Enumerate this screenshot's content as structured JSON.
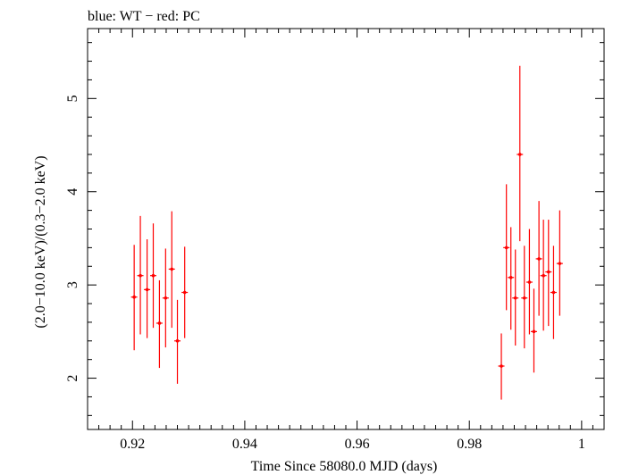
{
  "chart_data": {
    "type": "scatter",
    "title": "blue: WT − red: PC",
    "xlabel": "Time Since 58080.0 MJD (days)",
    "ylabel": "(2.0−10.0 keV)/(0.3−2.0 keV)",
    "xlim": [
      0.912,
      1.004
    ],
    "ylim": [
      1.45,
      5.75
    ],
    "x_ticks": [
      0.92,
      0.94,
      0.96,
      0.98,
      1.0
    ],
    "x_tick_labels": [
      "0.92",
      "0.94",
      "0.96",
      "0.98",
      "1"
    ],
    "y_ticks": [
      2,
      3,
      4,
      5
    ],
    "y_tick_labels": [
      "2",
      "3",
      "4",
      "5"
    ],
    "series": [
      {
        "name": "PC",
        "color": "#ff0000",
        "points": [
          {
            "x": 0.9203,
            "y": 2.87,
            "ylo": 2.3,
            "yhi": 3.43
          },
          {
            "x": 0.9214,
            "y": 3.1,
            "ylo": 2.47,
            "yhi": 3.74
          },
          {
            "x": 0.9226,
            "y": 2.95,
            "ylo": 2.43,
            "yhi": 3.49
          },
          {
            "x": 0.9237,
            "y": 3.1,
            "ylo": 2.54,
            "yhi": 3.66
          },
          {
            "x": 0.9248,
            "y": 2.59,
            "ylo": 2.11,
            "yhi": 3.05
          },
          {
            "x": 0.9259,
            "y": 2.86,
            "ylo": 2.33,
            "yhi": 3.39
          },
          {
            "x": 0.927,
            "y": 3.17,
            "ylo": 2.54,
            "yhi": 3.79
          },
          {
            "x": 0.928,
            "y": 2.4,
            "ylo": 1.94,
            "yhi": 2.84
          },
          {
            "x": 0.9293,
            "y": 2.92,
            "ylo": 2.43,
            "yhi": 3.41
          },
          {
            "x": 0.9857,
            "y": 2.13,
            "ylo": 1.77,
            "yhi": 2.48
          },
          {
            "x": 0.9866,
            "y": 3.4,
            "ylo": 2.73,
            "yhi": 4.08
          },
          {
            "x": 0.9874,
            "y": 3.08,
            "ylo": 2.52,
            "yhi": 3.62
          },
          {
            "x": 0.9882,
            "y": 2.86,
            "ylo": 2.35,
            "yhi": 3.38
          },
          {
            "x": 0.989,
            "y": 4.4,
            "ylo": 3.47,
            "yhi": 5.35
          },
          {
            "x": 0.9898,
            "y": 2.86,
            "ylo": 2.32,
            "yhi": 3.42
          },
          {
            "x": 0.9907,
            "y": 3.03,
            "ylo": 2.47,
            "yhi": 3.6
          },
          {
            "x": 0.9915,
            "y": 2.5,
            "ylo": 2.06,
            "yhi": 2.96
          },
          {
            "x": 0.9924,
            "y": 3.28,
            "ylo": 2.67,
            "yhi": 3.9
          },
          {
            "x": 0.9932,
            "y": 3.1,
            "ylo": 2.51,
            "yhi": 3.7
          },
          {
            "x": 0.9941,
            "y": 3.14,
            "ylo": 2.56,
            "yhi": 3.7
          },
          {
            "x": 0.995,
            "y": 2.92,
            "ylo": 2.42,
            "yhi": 3.42
          },
          {
            "x": 0.9961,
            "y": 3.23,
            "ylo": 2.67,
            "yhi": 3.8
          }
        ]
      }
    ]
  }
}
